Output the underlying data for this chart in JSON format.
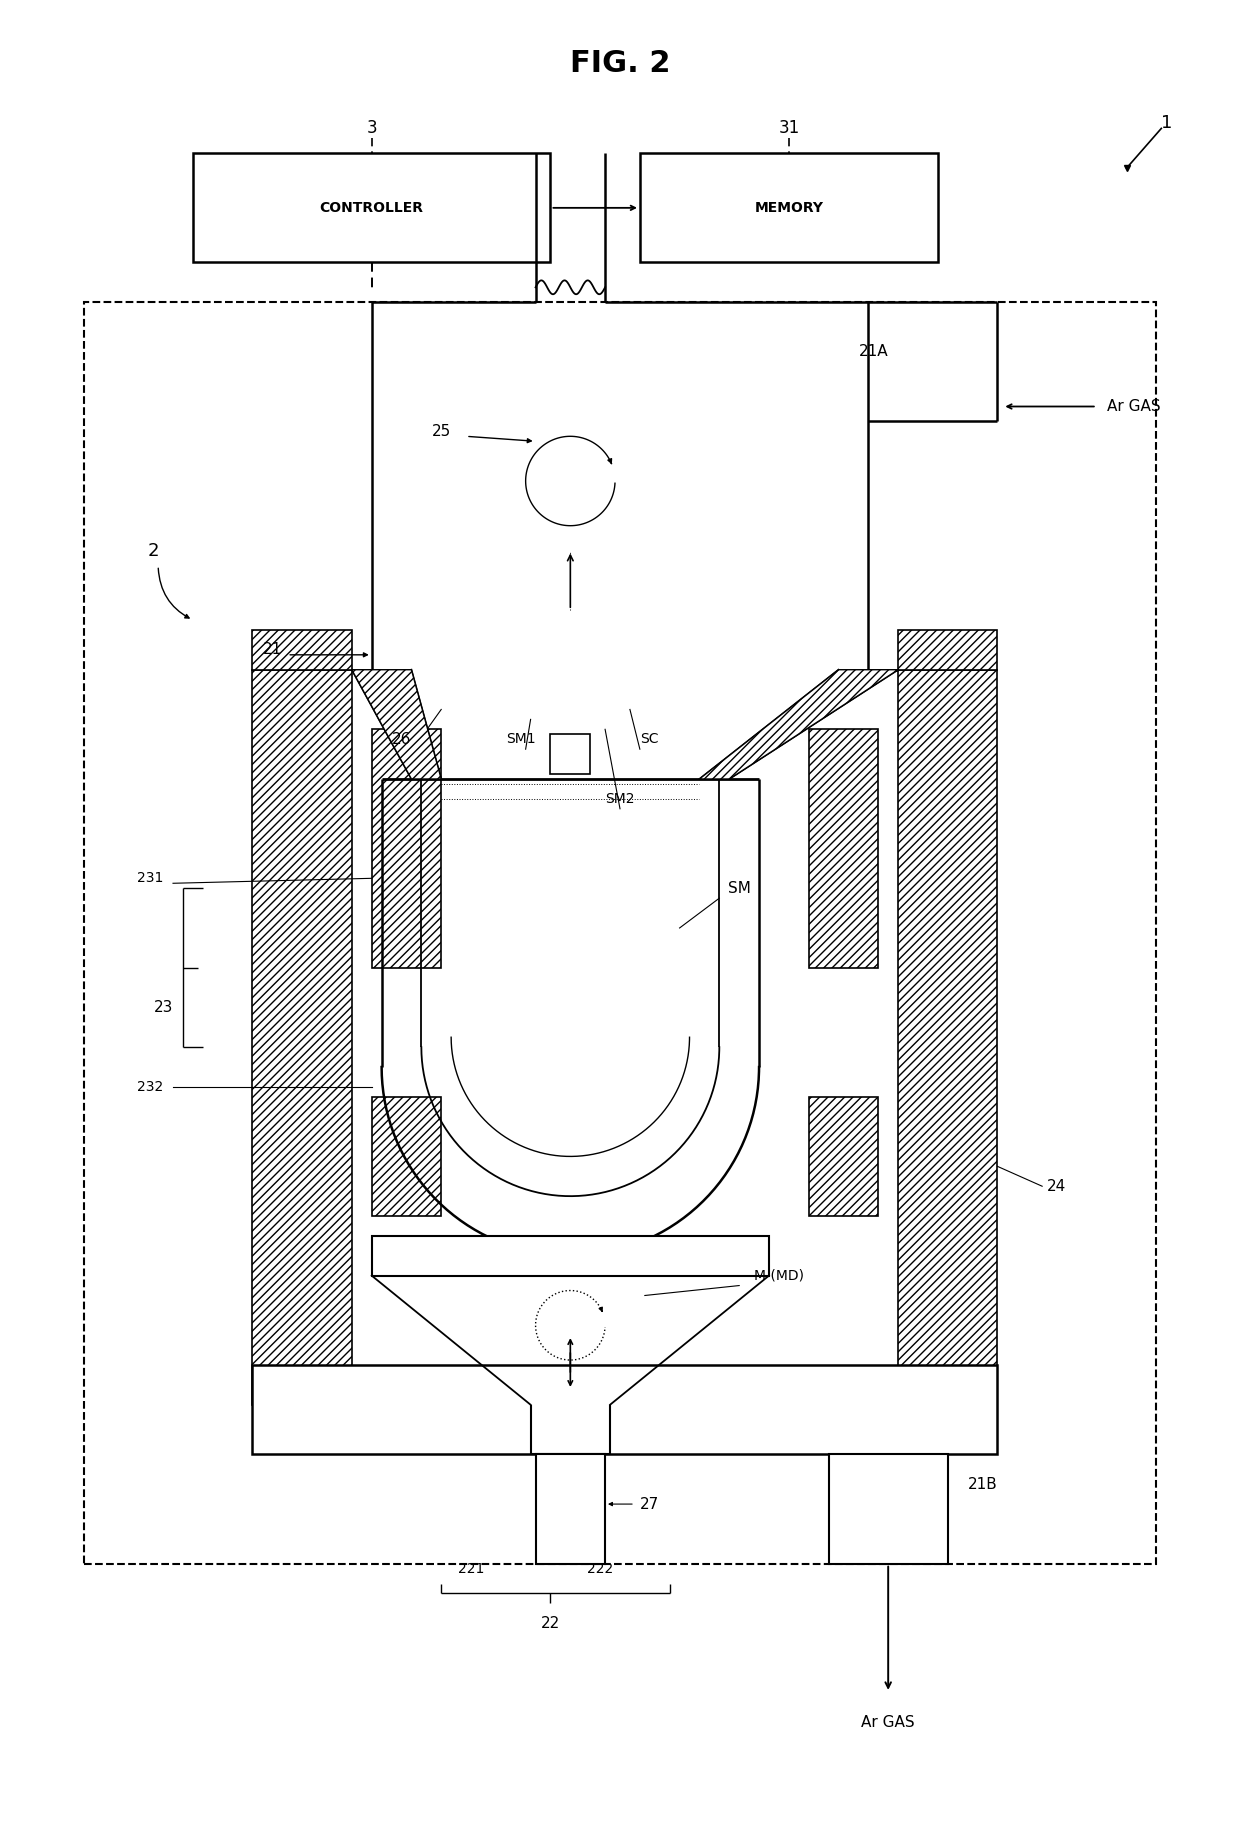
{
  "background": "#ffffff",
  "line_color": "#000000",
  "labels": {
    "title": "FIG. 2",
    "controller": "CONTROLLER",
    "memory": "MEMORY",
    "n3": "3",
    "n31": "31",
    "n1": "1",
    "n2": "2",
    "n21": "21",
    "n21A": "21A",
    "n21B": "21B",
    "n22": "22",
    "n221": "221",
    "n222": "222",
    "n23": "23",
    "n231": "231",
    "n232": "232",
    "n24": "24",
    "n25": "25",
    "n26": "26",
    "n27": "27",
    "SM": "SM",
    "SM1": "SM1",
    "SM2": "SM2",
    "SC": "SC",
    "M": "M (MD)",
    "ArGAS_top": "Ar GAS",
    "ArGAS_bot": "Ar GAS"
  }
}
